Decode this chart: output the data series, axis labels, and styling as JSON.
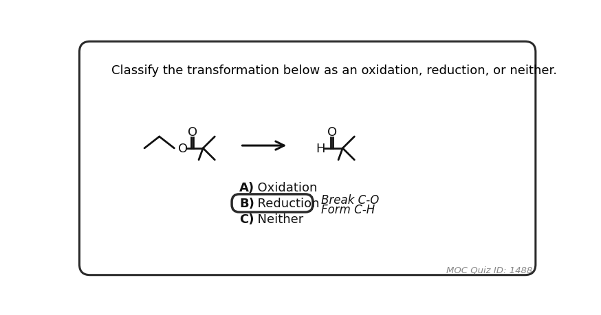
{
  "bg_color": "#ffffff",
  "border_color": "#2a2a2a",
  "text_color": "#000000",
  "question": "Classify the transformation below as an oxidation, reduction, or neither.",
  "question_fontsize": 13,
  "answer_a_bold": "A)",
  "answer_a_text": "  Oxidation",
  "answer_b_bold": "B)",
  "answer_b_text": "  Reduction",
  "answer_c_bold": "C)",
  "answer_c_text": "  Neither",
  "annotation_line1": "Break C-O",
  "annotation_line2": "Form C-H",
  "quiz_id": "MOC Quiz ID: 1488",
  "answer_fontsize": 13,
  "annotation_fontsize": 12,
  "lw": 2.0,
  "mol_color": "#111111"
}
